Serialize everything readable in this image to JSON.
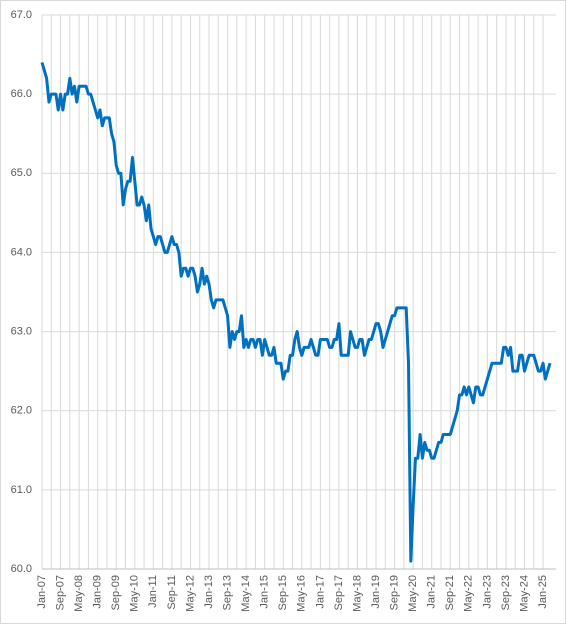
{
  "chart_data": {
    "type": "line",
    "categories": [
      "Jan-07",
      null,
      null,
      null,
      null,
      null,
      null,
      null,
      "Sep-07",
      null,
      null,
      null,
      null,
      null,
      null,
      null,
      "May-08",
      null,
      null,
      null,
      null,
      null,
      null,
      null,
      "Jan-09",
      null,
      null,
      null,
      null,
      null,
      null,
      null,
      "Sep-09",
      null,
      null,
      null,
      null,
      null,
      null,
      null,
      "May-10",
      null,
      null,
      null,
      null,
      null,
      null,
      null,
      "Jan-11",
      null,
      null,
      null,
      null,
      null,
      null,
      null,
      "Sep-11",
      null,
      null,
      null,
      null,
      null,
      null,
      null,
      "May-12",
      null,
      null,
      null,
      null,
      null,
      null,
      null,
      "Jan-13",
      null,
      null,
      null,
      null,
      null,
      null,
      null,
      "Sep-13",
      null,
      null,
      null,
      null,
      null,
      null,
      null,
      "May-14",
      null,
      null,
      null,
      null,
      null,
      null,
      null,
      "Jan-15",
      null,
      null,
      null,
      null,
      null,
      null,
      null,
      "Sep-15",
      null,
      null,
      null,
      null,
      null,
      null,
      null,
      "May-16",
      null,
      null,
      null,
      null,
      null,
      null,
      null,
      "Jan-17",
      null,
      null,
      null,
      null,
      null,
      null,
      null,
      "Sep-17",
      null,
      null,
      null,
      null,
      null,
      null,
      null,
      "May-18",
      null,
      null,
      null,
      null,
      null,
      null,
      null,
      "Jan-19",
      null,
      null,
      null,
      null,
      null,
      null,
      null,
      "Sep-19",
      null,
      null,
      null,
      null,
      null,
      null,
      null,
      "May-20",
      null,
      null,
      null,
      null,
      null,
      null,
      null,
      "Jan-21",
      null,
      null,
      null,
      null,
      null,
      null,
      null,
      "Sep-21",
      null,
      null,
      null,
      null,
      null,
      null,
      null,
      "May-22",
      null,
      null,
      null,
      null,
      null,
      null,
      null,
      "Jan-23",
      null,
      null,
      null,
      null,
      null,
      null,
      null,
      "Sep-23",
      null,
      null,
      null,
      null,
      null,
      null,
      null,
      "May-24",
      null,
      null,
      null,
      null,
      null,
      null,
      null,
      "Jan-25",
      null,
      null,
      null
    ],
    "values": [
      66.4,
      66.3,
      66.2,
      65.9,
      66.0,
      66.0,
      66.0,
      65.8,
      66.0,
      65.8,
      66.0,
      66.0,
      66.2,
      66.0,
      66.1,
      65.9,
      66.1,
      66.1,
      66.1,
      66.1,
      66.0,
      66.0,
      65.9,
      65.8,
      65.7,
      65.8,
      65.6,
      65.7,
      65.7,
      65.7,
      65.5,
      65.4,
      65.1,
      65.0,
      65.0,
      64.6,
      64.8,
      64.9,
      64.9,
      65.2,
      64.9,
      64.6,
      64.6,
      64.7,
      64.6,
      64.4,
      64.6,
      64.3,
      64.2,
      64.1,
      64.2,
      64.2,
      64.1,
      64.0,
      64.0,
      64.1,
      64.2,
      64.1,
      64.1,
      64.0,
      63.7,
      63.8,
      63.8,
      63.7,
      63.8,
      63.8,
      63.7,
      63.5,
      63.6,
      63.8,
      63.6,
      63.7,
      63.6,
      63.4,
      63.3,
      63.4,
      63.4,
      63.4,
      63.4,
      63.3,
      63.2,
      62.8,
      63.0,
      62.9,
      63.0,
      63.0,
      63.2,
      62.8,
      62.9,
      62.8,
      62.9,
      62.9,
      62.8,
      62.9,
      62.9,
      62.7,
      62.9,
      62.8,
      62.7,
      62.7,
      62.8,
      62.6,
      62.6,
      62.6,
      62.4,
      62.5,
      62.5,
      62.7,
      62.7,
      62.9,
      63.0,
      62.8,
      62.7,
      62.8,
      62.8,
      62.8,
      62.9,
      62.8,
      62.7,
      62.7,
      62.9,
      62.9,
      62.9,
      62.9,
      62.8,
      62.8,
      62.9,
      62.9,
      63.1,
      62.7,
      62.7,
      62.7,
      62.7,
      63.0,
      62.9,
      62.8,
      62.8,
      62.9,
      62.9,
      62.7,
      62.8,
      62.9,
      62.9,
      63.0,
      63.1,
      63.1,
      63.0,
      62.8,
      62.9,
      63.0,
      63.1,
      63.2,
      63.2,
      63.3,
      63.3,
      63.3,
      63.3,
      63.3,
      62.6,
      60.1,
      60.8,
      61.4,
      61.4,
      61.7,
      61.4,
      61.6,
      61.5,
      61.5,
      61.4,
      61.4,
      61.5,
      61.6,
      61.6,
      61.7,
      61.7,
      61.7,
      61.7,
      61.8,
      61.9,
      62.0,
      62.2,
      62.2,
      62.3,
      62.2,
      62.3,
      62.2,
      62.1,
      62.3,
      62.3,
      62.2,
      62.2,
      62.3,
      62.4,
      62.5,
      62.6,
      62.6,
      62.6,
      62.6,
      62.6,
      62.8,
      62.8,
      62.7,
      62.8,
      62.5,
      62.5,
      62.5,
      62.7,
      62.7,
      62.5,
      62.6,
      62.7,
      62.7,
      62.7,
      62.6,
      62.5,
      62.5,
      62.6,
      62.4,
      62.5,
      62.6
    ],
    "color": "#0070c0",
    "ylim": [
      60,
      67
    ],
    "yticks": [
      {
        "value": 60,
        "label": "60.0"
      },
      {
        "value": 61,
        "label": "61.0"
      },
      {
        "value": 62,
        "label": "62.0"
      },
      {
        "value": 63,
        "label": "63.0"
      },
      {
        "value": 64,
        "label": "64.0"
      },
      {
        "value": 65,
        "label": "65.0"
      },
      {
        "value": 66,
        "label": "66.0"
      },
      {
        "value": 67,
        "label": "67.0"
      }
    ],
    "grid": true
  }
}
